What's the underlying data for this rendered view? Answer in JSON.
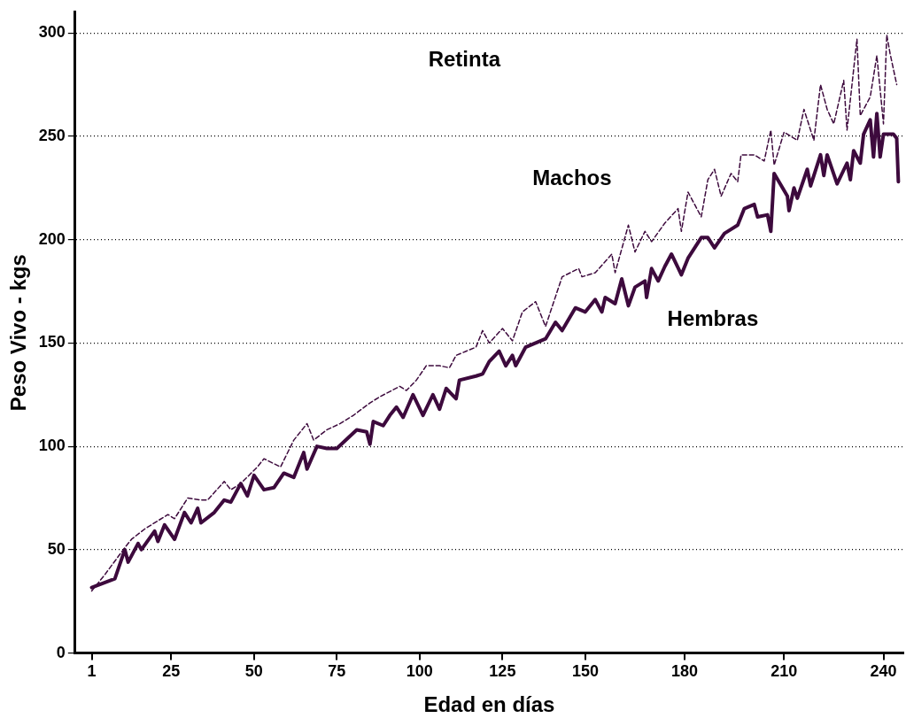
{
  "chart_data": {
    "type": "line",
    "xlabel": "Edad en días",
    "ylabel": "Peso Vivo - kgs",
    "annotations": [
      "Retinta"
    ],
    "xlim": [
      -4,
      246
    ],
    "xticks": [
      1,
      25,
      50,
      75,
      100,
      125,
      150,
      180,
      210,
      240
    ],
    "ylim": [
      0,
      310
    ],
    "yticks": [
      0,
      50,
      100,
      150,
      200,
      250,
      300
    ],
    "grid": "y",
    "legend": false,
    "marker": "none",
    "series": [
      {
        "name": "Machos",
        "color": "#3d0a3d",
        "line_style": "dashed",
        "x": [
          1,
          5,
          11,
          13,
          17,
          24,
          26,
          30,
          34,
          36,
          41,
          43,
          46,
          51,
          53,
          58,
          62,
          66,
          68,
          72,
          76,
          80,
          85,
          88,
          94,
          96,
          99,
          102,
          106,
          109,
          111,
          114,
          117,
          119,
          121,
          125,
          128,
          131,
          135,
          138,
          143,
          148,
          149,
          153,
          158,
          159,
          163,
          165,
          168,
          170,
          174,
          178,
          179,
          181,
          185,
          187,
          189,
          191,
          194,
          196,
          197,
          201,
          204,
          206,
          207,
          210,
          214,
          216,
          219,
          221,
          223,
          225,
          228,
          229,
          232,
          233,
          236,
          238,
          240,
          241,
          242,
          244
        ],
        "values": [
          30,
          38,
          51,
          55,
          60,
          67,
          65,
          75,
          74,
          74,
          83,
          79,
          82,
          90,
          94,
          90,
          103,
          111,
          103,
          108,
          111,
          115,
          121,
          124,
          129,
          127,
          132,
          139,
          139,
          138,
          144,
          146,
          148,
          156,
          150,
          157,
          151,
          165,
          170,
          158,
          182,
          186,
          182,
          184,
          193,
          184,
          207,
          194,
          204,
          199,
          208,
          215,
          204,
          223,
          211,
          229,
          234,
          221,
          232,
          228,
          241,
          241,
          238,
          253,
          236,
          252,
          248,
          263,
          248,
          275,
          263,
          256,
          277,
          253,
          297,
          260,
          269,
          289,
          256,
          299,
          290,
          275
        ]
      },
      {
        "name": "Hembras",
        "color": "#3d0a3d",
        "line_style": "solid",
        "x": [
          1,
          8,
          11,
          12,
          15,
          16,
          20,
          21,
          23,
          26,
          29,
          31,
          33,
          34,
          38,
          41,
          43,
          46,
          48,
          50,
          53,
          56,
          59,
          62,
          65,
          66,
          69,
          72,
          75,
          79,
          81,
          84,
          85,
          86,
          89,
          91,
          93,
          95,
          98,
          101,
          104,
          106,
          108,
          111,
          112,
          117,
          119,
          121,
          124,
          126,
          128,
          129,
          131,
          132,
          135,
          138,
          141,
          143,
          147,
          150,
          153,
          155,
          156,
          159,
          161,
          163,
          165,
          168,
          168.5,
          170,
          172,
          174,
          176,
          179,
          181,
          185,
          187,
          189,
          192,
          196,
          198,
          201,
          202,
          205,
          206,
          207,
          211,
          211.5,
          213,
          214,
          217,
          218,
          221,
          222,
          223,
          226,
          229,
          230,
          231,
          233,
          234,
          236,
          237,
          238,
          239,
          240,
          243,
          244,
          244.5
        ],
        "values": [
          31.7,
          36,
          50,
          44,
          53,
          50,
          59,
          54,
          62,
          55,
          68,
          63,
          70,
          63,
          68,
          74,
          73,
          82,
          76,
          86,
          79,
          80,
          87,
          85,
          97,
          89,
          100,
          99,
          99,
          105,
          108,
          107,
          101,
          112,
          110,
          115,
          119,
          114,
          125,
          115,
          125,
          118,
          128,
          123,
          132,
          134,
          135,
          141,
          146,
          139,
          144,
          139,
          145,
          148,
          150,
          152,
          160,
          156,
          167,
          165,
          171,
          165,
          172,
          169,
          181,
          168,
          177,
          180,
          172,
          186,
          180,
          187,
          193,
          183,
          191,
          201,
          201,
          196,
          203,
          207,
          215,
          217,
          211,
          212,
          204,
          232,
          221,
          214,
          225,
          220,
          234,
          226,
          241,
          231,
          241,
          227,
          237,
          229,
          243,
          237,
          251,
          258,
          240,
          261,
          240,
          251,
          251,
          249,
          228
        ]
      }
    ]
  }
}
